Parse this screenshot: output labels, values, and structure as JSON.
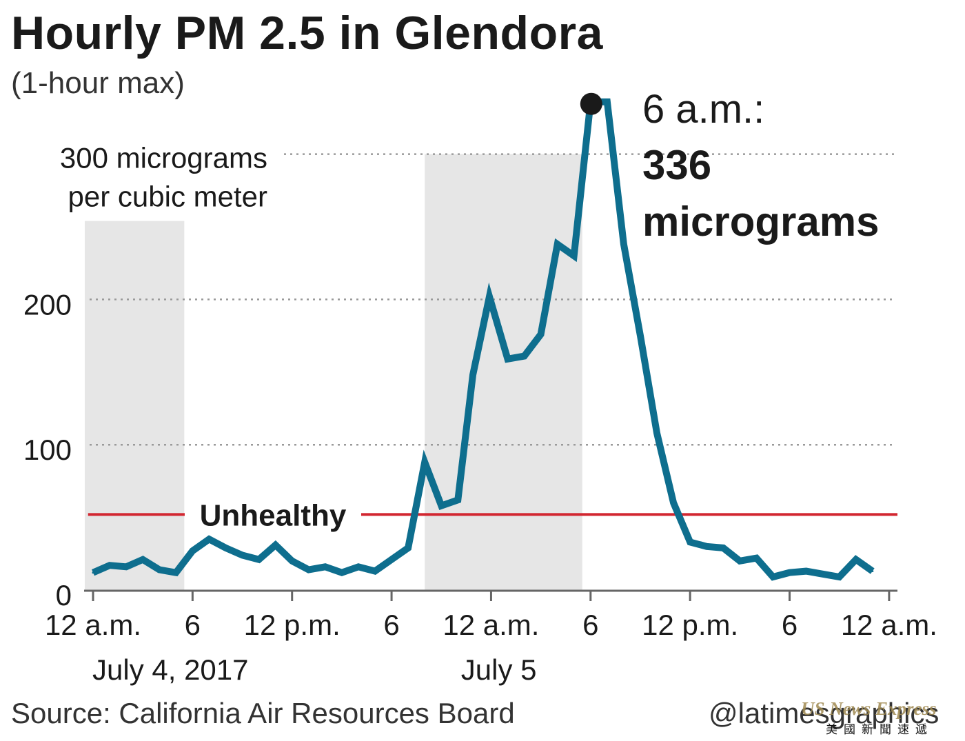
{
  "title": "Hourly PM 2.5 in Glendora",
  "subtitle": "(1-hour max)",
  "source": "Source: California Air Resources Board",
  "credit": "@latimesgraphics",
  "watermark": {
    "text": "US News Express",
    "sub": "美國新聞速遞"
  },
  "colors": {
    "line": "#0e6e8e",
    "threshold": "#d22630",
    "shade": "#e6e6e6",
    "grid": "#9a9a9a",
    "axis": "#666666",
    "dot": "#1a1a1a"
  },
  "chart_data": {
    "type": "line",
    "title": "Hourly PM 2.5 in Glendora",
    "subtitle": "(1-hour max)",
    "ylim": [
      0,
      340
    ],
    "y_ticks": [
      {
        "value": 0,
        "label": "0"
      },
      {
        "value": 100,
        "label": "100"
      },
      {
        "value": 200,
        "label": "200"
      },
      {
        "value": 300,
        "lines": [
          "300 micrograms",
          "per cubic meter"
        ]
      }
    ],
    "x_ticks": [
      {
        "hour": 0,
        "label": "12 a.m."
      },
      {
        "hour": 6,
        "label": "6"
      },
      {
        "hour": 12,
        "label": "12 p.m."
      },
      {
        "hour": 18,
        "label": "6"
      },
      {
        "hour": 24,
        "label": "12 a.m."
      },
      {
        "hour": 30,
        "label": "6"
      },
      {
        "hour": 36,
        "label": "12 p.m."
      },
      {
        "hour": 42,
        "label": "6"
      },
      {
        "hour": 48,
        "label": "12 a.m."
      }
    ],
    "date_labels": [
      {
        "hour": 4.5,
        "label": "July 4, 2017"
      },
      {
        "hour": 24.3,
        "label": "July 5"
      }
    ],
    "shaded_periods": [
      {
        "start": -0.5,
        "end": 5.5,
        "top": 254
      },
      {
        "start": 20,
        "end": 29.5,
        "top": 300
      }
    ],
    "threshold": {
      "value": 52,
      "label": "Unhealthy",
      "start": -0.3,
      "end": 49
    },
    "grid": true,
    "series": [
      {
        "x": [
          0,
          1,
          2,
          3,
          4,
          5,
          6,
          7,
          8,
          9,
          10,
          11,
          12,
          13,
          14,
          15,
          16,
          17,
          18,
          19,
          20,
          21,
          22,
          22.9,
          23.9,
          25,
          26,
          27,
          28,
          29,
          30,
          31,
          32,
          33,
          34,
          35,
          36,
          37,
          38,
          39,
          40,
          41,
          42,
          43,
          44,
          45,
          46,
          47
        ],
        "y": [
          12,
          17,
          16,
          21,
          14,
          12,
          27,
          35,
          29,
          24,
          21,
          31,
          20,
          14,
          16,
          12,
          16,
          13,
          21,
          29,
          88,
          58,
          62,
          148,
          202,
          159,
          161,
          176,
          238,
          230,
          336,
          336,
          238,
          175,
          108,
          60,
          33,
          30,
          29,
          20,
          22,
          9,
          12,
          13,
          11,
          9,
          21,
          13
        ]
      }
    ],
    "annotation": {
      "hour": 30,
      "value": 336,
      "time": "6 a.m.:",
      "value_text": "336",
      "unit": "micrograms"
    }
  }
}
